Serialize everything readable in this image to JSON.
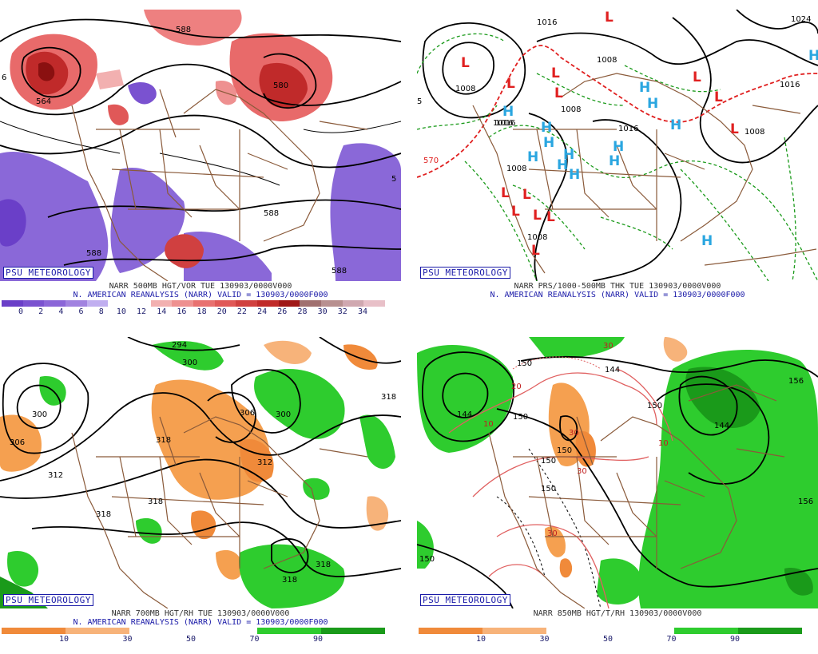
{
  "credit": "PSU METEOROLOGY",
  "panels": {
    "tl": {
      "line1": "NARR 500MB HGT/VOR TUE 130903/0000V000",
      "line2": "N. AMERICAN REANALYSIS (NARR) VALID = 130903/0000F000",
      "ticks": [
        "0",
        "2",
        "4",
        "6",
        "8",
        "10",
        "12",
        "14",
        "16",
        "18",
        "20",
        "22",
        "24",
        "26",
        "28",
        "30",
        "32",
        "34"
      ],
      "palette": [
        "#6a3fc8",
        "#7a52d0",
        "#8b66d8",
        "#a182e0",
        "#c0aef0",
        "#ffffff",
        "#ffffff",
        "#f2b0b0",
        "#ee9090",
        "#e87070",
        "#e05858",
        "#d04040",
        "#c02a2a",
        "#a01818",
        "#a07070",
        "#b89090",
        "#d0a8b0",
        "#e8c0c8"
      ],
      "labels": [
        "564",
        "588",
        "588",
        "588",
        "588",
        "580",
        "6",
        "5"
      ]
    },
    "tr": {
      "line1": "NARR PRS/1000-500MB THK TUE 130903/0000V000",
      "line2": "N. AMERICAN REANALYSIS (NARR) VALID = 130903/0000F000",
      "labels": [
        "1016",
        "1008",
        "1008",
        "1016",
        "1016",
        "1008",
        "1008",
        "1008",
        "1016",
        "1008",
        "1024",
        "1016",
        "570",
        "5"
      ],
      "pressure_centers": [
        "L",
        "L",
        "L",
        "L",
        "L",
        "L",
        "L",
        "L",
        "L",
        "L",
        "L",
        "L",
        "L",
        "L",
        "H",
        "H",
        "H",
        "H",
        "H",
        "H",
        "H",
        "H",
        "H",
        "H",
        "H",
        "H",
        "H",
        "H"
      ]
    },
    "bl": {
      "line1": "NARR 700MB HGT/RH TUE 130903/0000V000",
      "line2": "N. AMERICAN REANALYSIS (NARR) VALID = 130903/0000F000",
      "ticks": [
        "10",
        "30",
        "50",
        "70",
        "90"
      ],
      "labels": [
        "300",
        "306",
        "312",
        "318",
        "318",
        "306",
        "300",
        "312",
        "318",
        "318",
        "318",
        "300",
        "318",
        "294"
      ]
    },
    "br": {
      "line1": "NARR 850MB HGT/T/RH 130903/0000V000",
      "ticks": [
        "10",
        "30",
        "50",
        "70",
        "90"
      ],
      "labels": [
        "144",
        "150",
        "150",
        "156",
        "156",
        "144",
        "144",
        "150",
        "150",
        "150",
        "150",
        "150",
        "10",
        "20",
        "30",
        "30",
        "30",
        "10",
        "30"
      ]
    }
  },
  "colors": {
    "rh": [
      "#f08a3a",
      "#f7b37a",
      "#ffffff",
      "#ffffff",
      "#2ecc2e",
      "#1a9a1a"
    ]
  }
}
